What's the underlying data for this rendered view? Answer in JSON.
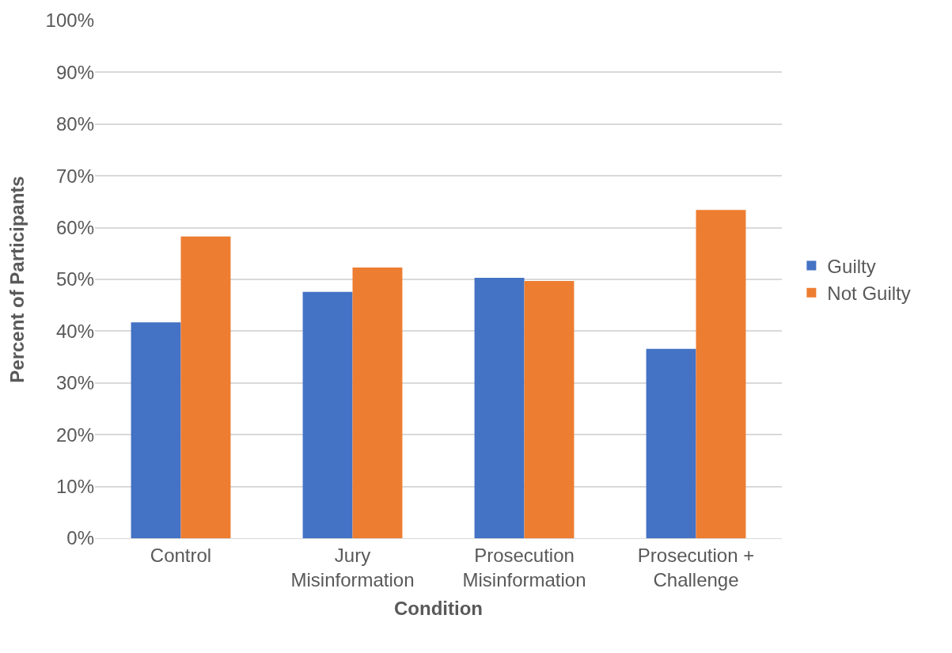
{
  "chart_data": {
    "type": "bar",
    "xlabel": "Condition",
    "ylabel": "Percent of Participants",
    "categories": [
      "Control",
      "Jury\nMisinformation",
      "Prosecution\nMisinformation",
      "Prosecution +\nChallenge"
    ],
    "series": [
      {
        "name": "Guilty",
        "color": "#4472c4",
        "values": [
          41.7,
          47.6,
          50.3,
          36.6
        ]
      },
      {
        "name": "Not Guilty",
        "color": "#ed7d31",
        "values": [
          58.3,
          52.3,
          49.7,
          63.4
        ]
      }
    ],
    "ylim": [
      0,
      100
    ],
    "yticks": [
      {
        "value": 0,
        "label": "0%"
      },
      {
        "value": 10,
        "label": "10%"
      },
      {
        "value": 20,
        "label": "20%"
      },
      {
        "value": 30,
        "label": "30%"
      },
      {
        "value": 40,
        "label": "40%"
      },
      {
        "value": 50,
        "label": "50%"
      },
      {
        "value": 60,
        "label": "60%"
      },
      {
        "value": 70,
        "label": "70%"
      },
      {
        "value": 80,
        "label": "80%"
      },
      {
        "value": 90,
        "label": "90%"
      },
      {
        "value": 100,
        "label": "100%"
      }
    ],
    "grid": "y",
    "legend": "right"
  }
}
